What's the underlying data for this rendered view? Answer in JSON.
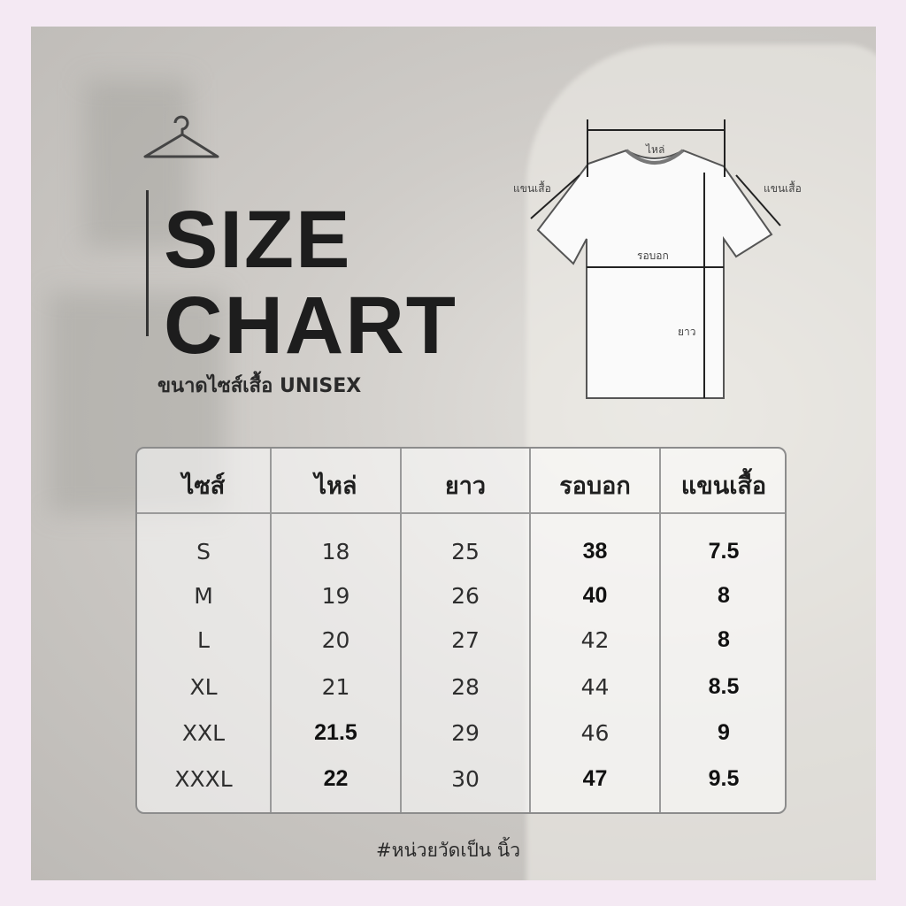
{
  "title": {
    "line1": "SIZE",
    "line2": "CHART",
    "subtitle": "ขนาดไซส์เสื้อ UNISEX"
  },
  "diagram": {
    "shoulder": "ไหล่",
    "sleeve_left": "แขนเสื้อ",
    "sleeve_right": "แขนเสื้อ",
    "chest": "รอบอก",
    "length": "ยาว"
  },
  "table": {
    "headers": [
      "ไซส์",
      "ไหล่",
      "ยาว",
      "รอบอก",
      "แขนเสื้อ"
    ],
    "rows": [
      [
        "S",
        "18",
        "25",
        "38",
        "7.5"
      ],
      [
        "M",
        "19",
        "26",
        "40",
        "8"
      ],
      [
        "L",
        "20",
        "27",
        "42",
        "8"
      ],
      [
        "XL",
        "21",
        "28",
        "44",
        "8.5"
      ],
      [
        "XXL",
        "21.5",
        "29",
        "46",
        "9"
      ],
      [
        "XXXL",
        "22",
        "30",
        "47",
        "9.5"
      ]
    ]
  },
  "footnote": "#หน่วยวัดเป็น นิ้ว",
  "icons": {
    "hanger": "hanger-icon",
    "shirt": "tshirt-diagram"
  },
  "colors": {
    "outer_border": "#f4e9f3",
    "text": "#1d1d1d",
    "table_border": "#8c8c8c"
  }
}
